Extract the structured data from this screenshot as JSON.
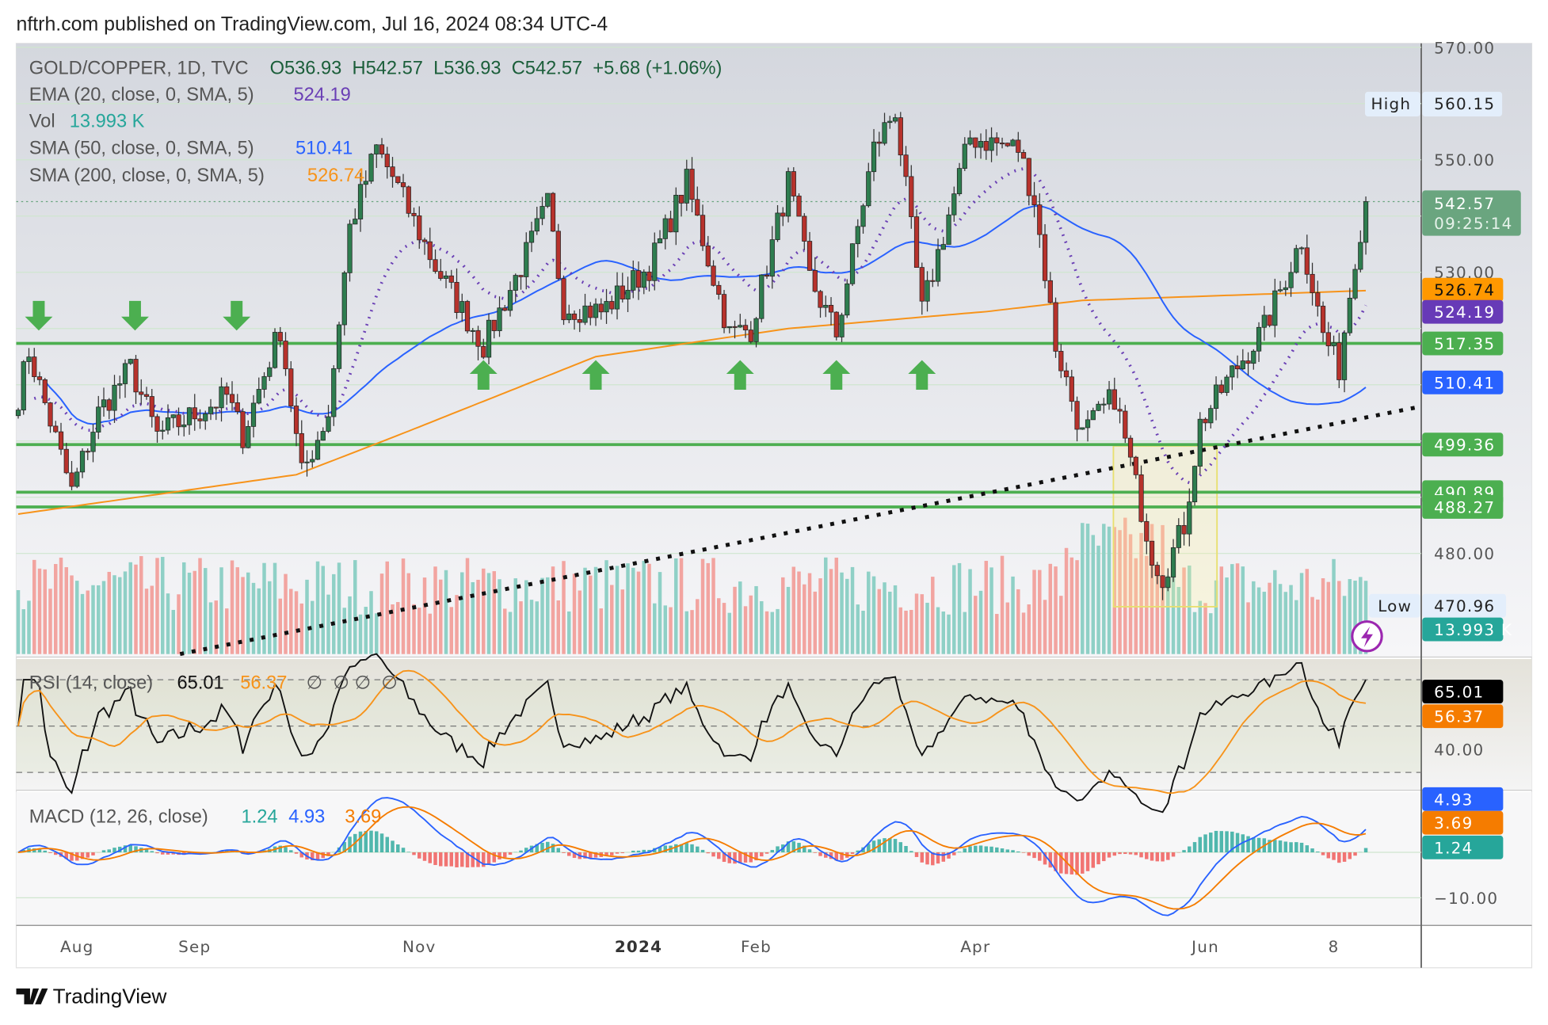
{
  "header": {
    "published": "nftrh.com published on TradingView.com, Jul 16, 2024 08:34 UTC-4"
  },
  "footer": {
    "brand": "TradingView"
  },
  "legend": {
    "symbol": "GOLD/COPPER, 1D, TVC",
    "ohlc": "O536.93  H542.57  L536.93  C542.57  +5.68 (+1.06%)",
    "ema_label": "EMA (20, close, 0, SMA, 5)",
    "ema_value": "524.19",
    "vol_label": "Vol",
    "vol_value": "13.993 K",
    "sma50_label": "SMA (50, close, 0, SMA, 5)",
    "sma50_value": "510.41",
    "sma200_label": "SMA (200, close, 0, SMA, 5)",
    "sma200_value": "526.74",
    "rsi_label": "RSI (14, close)",
    "rsi_value": "65.01",
    "rsi_ma_value": "56.37",
    "rsi_extra": "∅  ∅ ∅  ∅",
    "macd_label": "MACD (12, 26, close)",
    "macd_hist": "1.24",
    "macd_line": "4.93",
    "macd_signal": "3.69"
  },
  "colors": {
    "up": "#2e7d4f",
    "down": "#b7322c",
    "ema": "#6a3fb5",
    "sma50": "#2962ff",
    "sma200": "#f7931a",
    "level": "#4caf50",
    "rsi": "#000000",
    "macd_signal": "#f57c00"
  },
  "chart_data": {
    "type": "candlestick",
    "title": "GOLD/COPPER, 1D, TVC",
    "ylim": [
      470,
      572
    ],
    "price_ticks": [
      "570.00",
      "550.00",
      "530.00",
      "480.00"
    ],
    "x_ticks": [
      {
        "label": "Aug",
        "day": 11
      },
      {
        "label": "Sep",
        "day": 33
      },
      {
        "label": "Nov",
        "day": 75
      },
      {
        "label": "2024",
        "day": 116
      },
      {
        "label": "Feb",
        "day": 138
      },
      {
        "label": "Apr",
        "day": 179
      },
      {
        "label": "Jun",
        "day": 222
      },
      {
        "label": "8",
        "day": 246
      }
    ],
    "close_path": [
      [
        0,
        508
      ],
      [
        2,
        516
      ],
      [
        10,
        491
      ],
      [
        15,
        505
      ],
      [
        21,
        513
      ],
      [
        26,
        501
      ],
      [
        39,
        508
      ],
      [
        42,
        501
      ],
      [
        49,
        520
      ],
      [
        53,
        494
      ],
      [
        58,
        505
      ],
      [
        62,
        538
      ],
      [
        67,
        552
      ],
      [
        70,
        547
      ],
      [
        78,
        531
      ],
      [
        87,
        517
      ],
      [
        94,
        531
      ],
      [
        99,
        542
      ],
      [
        102,
        524
      ],
      [
        109,
        523
      ],
      [
        118,
        531
      ],
      [
        125,
        546
      ],
      [
        133,
        519
      ],
      [
        137,
        520
      ],
      [
        144,
        546
      ],
      [
        148,
        529
      ],
      [
        153,
        519
      ],
      [
        160,
        552
      ],
      [
        164,
        559
      ],
      [
        169,
        523
      ],
      [
        178,
        554
      ],
      [
        187,
        552
      ],
      [
        190,
        543
      ],
      [
        194,
        517
      ],
      [
        199,
        501
      ],
      [
        205,
        508
      ],
      [
        208,
        496
      ],
      [
        212,
        480
      ],
      [
        214,
        476
      ],
      [
        218,
        485
      ],
      [
        221,
        503
      ],
      [
        227,
        512
      ],
      [
        233,
        520
      ],
      [
        240,
        536
      ],
      [
        244,
        519
      ],
      [
        247,
        513
      ],
      [
        250,
        533
      ],
      [
        252,
        542.57
      ]
    ],
    "sma200_path": [
      [
        0,
        487
      ],
      [
        52,
        494
      ],
      [
        71,
        501
      ],
      [
        108,
        515
      ],
      [
        144,
        520
      ],
      [
        181,
        523
      ],
      [
        199,
        525
      ],
      [
        252,
        526.74
      ]
    ],
    "levels": [
      {
        "label": "517.35",
        "value": 517.35
      },
      {
        "label": "499.36",
        "value": 499.36
      },
      {
        "label": "490.89",
        "value": 490.89
      },
      {
        "label": "488.27",
        "value": 488.27
      }
    ],
    "price_tags": {
      "high_label": "High",
      "high": "560.15",
      "low_label": "Low",
      "low": "470.96",
      "last": "542.57",
      "countdown": "09:25:14",
      "sma200": "526.74",
      "ema": "524.19",
      "sma50": "510.41",
      "volume": "13.993 K"
    },
    "rsi": {
      "ticks": [
        "40.00"
      ],
      "tags": [
        "65.01",
        "56.37"
      ],
      "bands": [
        30,
        50,
        70
      ]
    },
    "macd": {
      "ticks": [
        "−10.00"
      ],
      "tags": [
        "4.93",
        "3.69",
        "1.24"
      ]
    },
    "annotations": {
      "down_arrow_days": [
        2,
        20,
        39
      ],
      "up_arrow_days": [
        87,
        108,
        135,
        153,
        169
      ],
      "trendline": "dotted rising support",
      "highlight_box_days": [
        205,
        224
      ]
    }
  }
}
